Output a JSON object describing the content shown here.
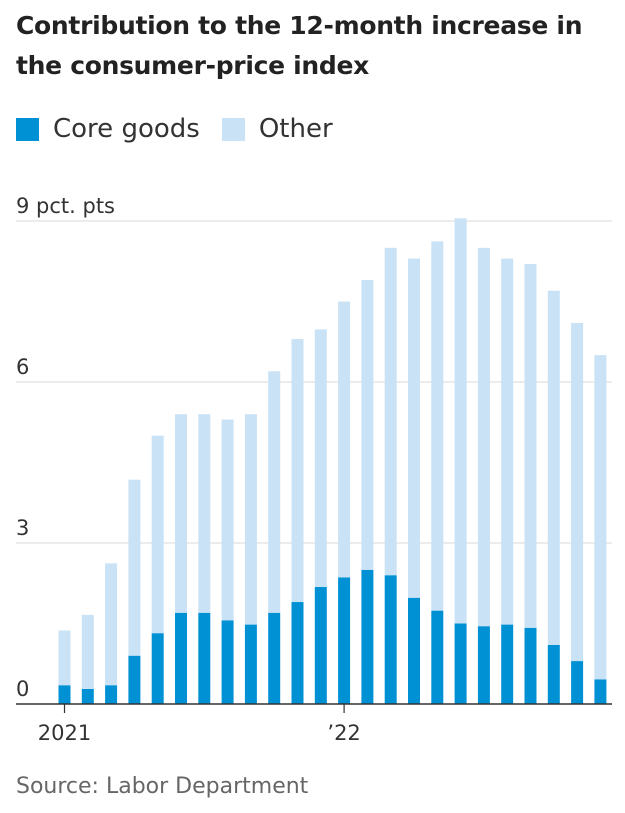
{
  "title": "Contribution to the 12-month increase in the consumer-price index",
  "source": "Source: Labor Department",
  "colors": {
    "core": "#0091d5",
    "other": "#c9e2f5",
    "grid": "#d8d8d8",
    "axis": "#333333"
  },
  "chart_data": {
    "type": "bar",
    "stacked": true,
    "legend": "top-left",
    "grid": true,
    "ylim": [
      0,
      9
    ],
    "y_ticks": [
      {
        "value": 9,
        "label": "9 pct. pts"
      },
      {
        "value": 6,
        "label": "6"
      },
      {
        "value": 3,
        "label": "3"
      },
      {
        "value": 0,
        "label": "0"
      }
    ],
    "x_labels": [
      {
        "index": 0,
        "label": "2021"
      },
      {
        "index": 12,
        "label": "’22"
      }
    ],
    "series": [
      {
        "name": "Core goods",
        "key": "core",
        "values": [
          0.35,
          0.28,
          0.35,
          0.9,
          1.32,
          1.7,
          1.7,
          1.56,
          1.48,
          1.7,
          1.9,
          2.18,
          2.36,
          2.5,
          2.4,
          1.98,
          1.74,
          1.5,
          1.45,
          1.48,
          1.42,
          1.1,
          0.8,
          0.46
        ]
      },
      {
        "name": "Other",
        "key": "other",
        "values": [
          1.02,
          1.38,
          2.27,
          3.28,
          3.68,
          3.7,
          3.7,
          3.74,
          3.92,
          4.5,
          4.9,
          4.8,
          5.14,
          5.4,
          6.1,
          6.32,
          6.88,
          7.55,
          7.05,
          6.82,
          6.78,
          6.6,
          6.3,
          6.04
        ]
      }
    ]
  }
}
